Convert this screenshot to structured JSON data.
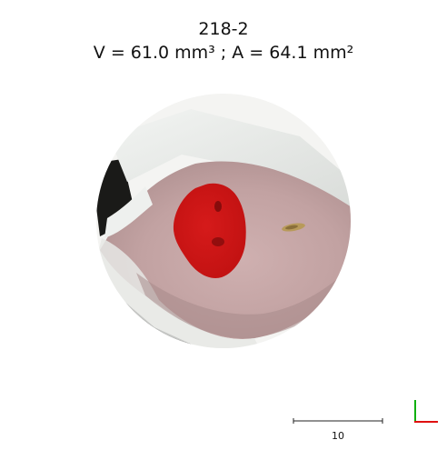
{
  "specimen_id": "218-2",
  "measurements": "V = 61.0 mm³ ; A = 64.1 mm²",
  "scale_bar": {
    "label": "10"
  },
  "colors": {
    "lesion_overlay": "#d31414",
    "axis_x": "#e01010",
    "axis_y": "#10b010",
    "skin": "#c9a9a9",
    "background": "#ffffff"
  },
  "icons": {
    "orientation_axes": "xy-axes-icon"
  }
}
